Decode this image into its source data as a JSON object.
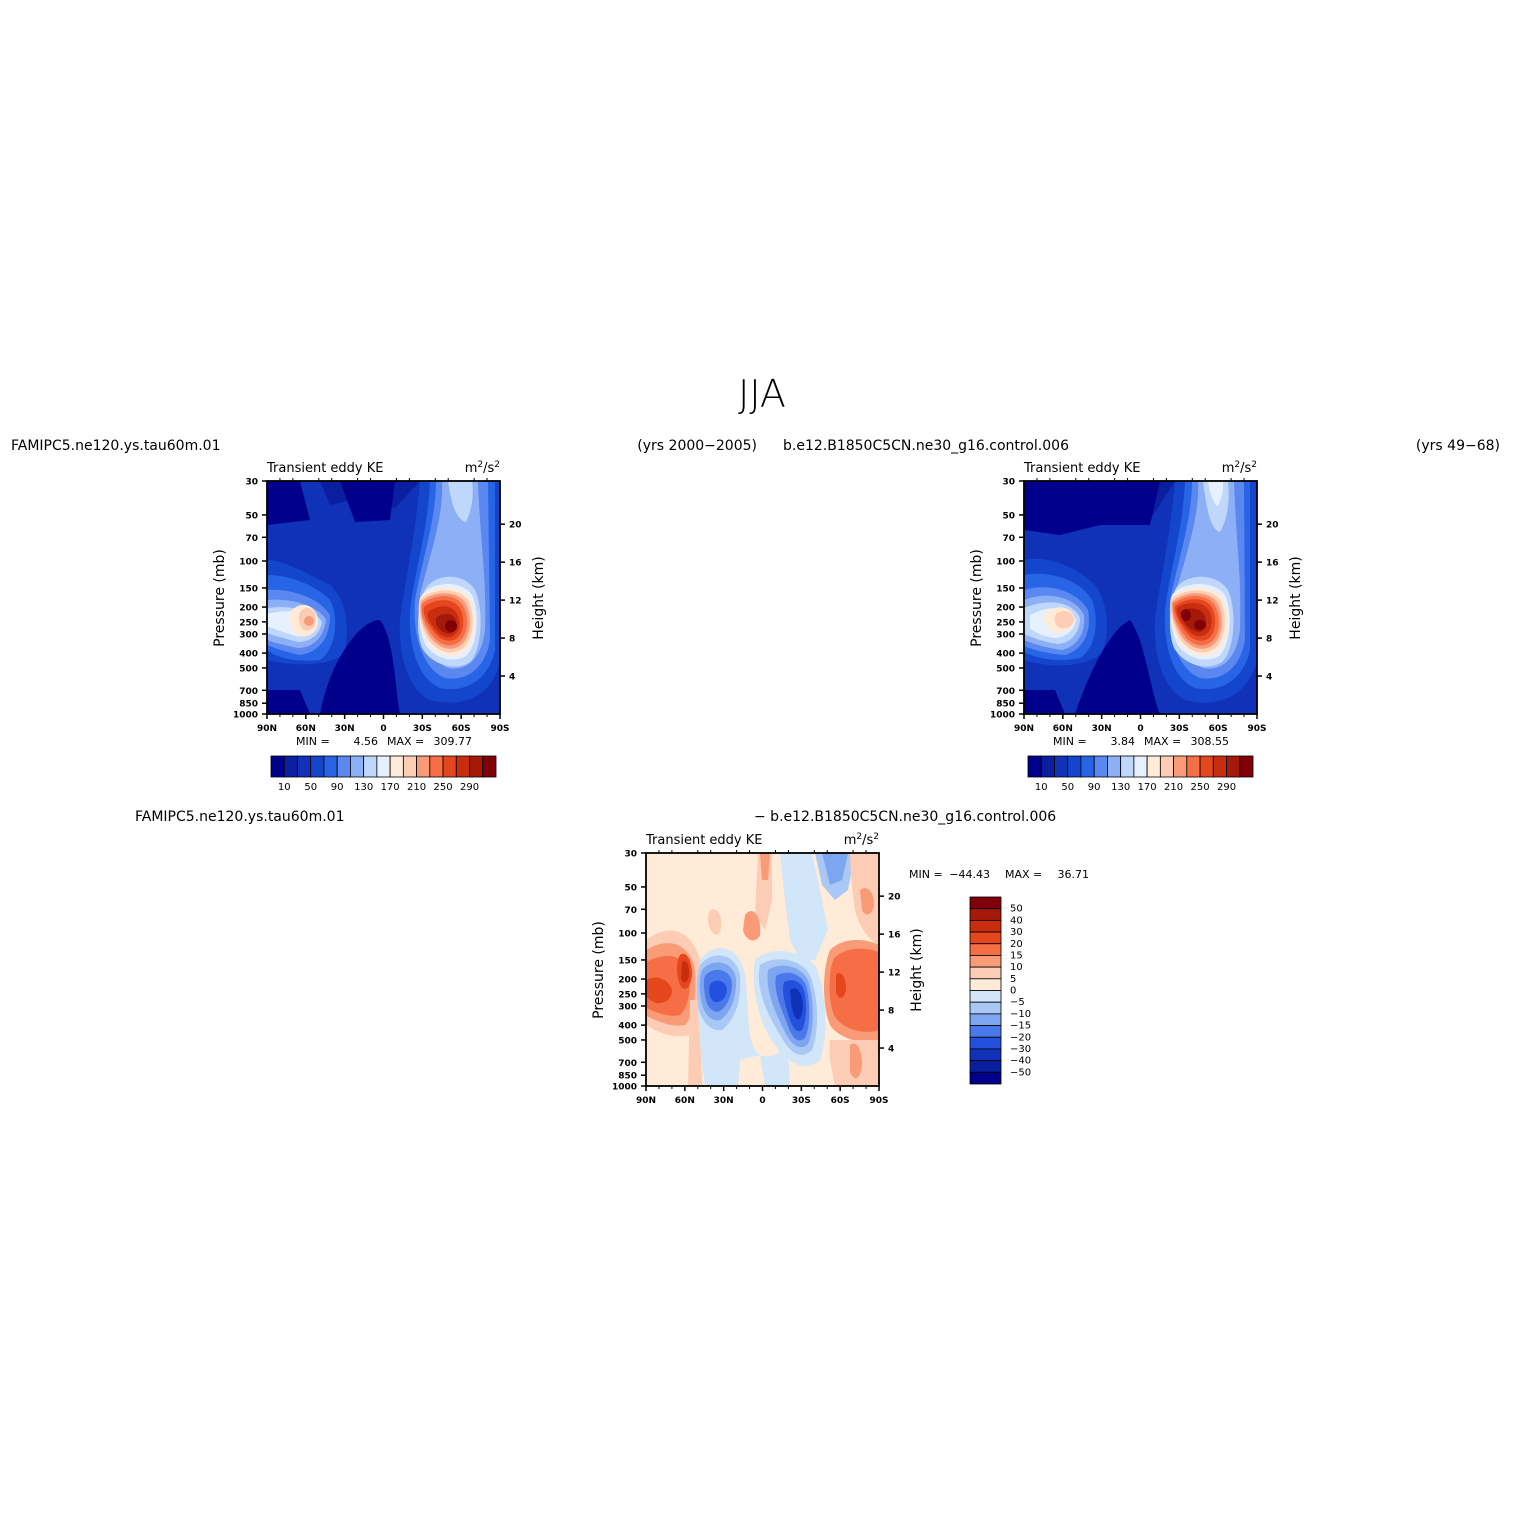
{
  "figure": {
    "title": "JJA",
    "difference_header": {
      "case_a": "FAMIPC5.ne120.ys.tau60m.01",
      "case_b": "− b.e12.B1850C5CN.ne30_g16.control.006"
    }
  },
  "chart_data": [
    {
      "id": "case-a",
      "type": "heatmap",
      "case_name": "FAMIPC5.ne120.ys.tau60m.01",
      "years": "(yrs 2000−2005)",
      "variable": "Transient eddy KE",
      "units_base": "m",
      "units_exp": "2",
      "units_tail": "/s",
      "units_exp2": "2",
      "ylabel": "Pressure (mb)",
      "ylabel_right": "Height (km)",
      "x_ticks": [
        "90N",
        "60N",
        "30N",
        "0",
        "30S",
        "60S",
        "90S"
      ],
      "y_ticks": [
        30,
        50,
        70,
        100,
        150,
        200,
        250,
        300,
        400,
        500,
        700,
        850,
        1000
      ],
      "height_ticks": [
        4,
        8,
        12,
        16,
        20
      ],
      "min_label": "MIN =",
      "min_value": "4.56",
      "max_label": "MAX =",
      "max_value": "309.77",
      "colorbar_ticks": [
        "10",
        "50",
        "90",
        "130",
        "170",
        "210",
        "250",
        "290"
      ],
      "colorbar_orientation": "horizontal"
    },
    {
      "id": "case-b",
      "type": "heatmap",
      "case_name": "b.e12.B1850C5CN.ne30_g16.control.006",
      "years": "(yrs 49−68)",
      "variable": "Transient eddy KE",
      "units_base": "m",
      "units_exp": "2",
      "units_tail": "/s",
      "units_exp2": "2",
      "ylabel": "Pressure (mb)",
      "ylabel_right": "Height (km)",
      "x_ticks": [
        "90N",
        "60N",
        "30N",
        "0",
        "30S",
        "60S",
        "90S"
      ],
      "y_ticks": [
        30,
        50,
        70,
        100,
        150,
        200,
        250,
        300,
        400,
        500,
        700,
        850,
        1000
      ],
      "height_ticks": [
        4,
        8,
        12,
        16,
        20
      ],
      "min_label": "MIN =",
      "min_value": "3.84",
      "max_label": "MAX =",
      "max_value": "308.55",
      "colorbar_ticks": [
        "10",
        "50",
        "90",
        "130",
        "170",
        "210",
        "250",
        "290"
      ],
      "colorbar_orientation": "horizontal"
    },
    {
      "id": "difference",
      "type": "heatmap",
      "variable": "Transient eddy KE",
      "units_base": "m",
      "units_exp": "2",
      "units_tail": "/s",
      "units_exp2": "2",
      "ylabel": "Pressure (mb)",
      "ylabel_right": "Height (km)",
      "x_ticks": [
        "90N",
        "60N",
        "30N",
        "0",
        "30S",
        "60S",
        "90S"
      ],
      "y_ticks": [
        30,
        50,
        70,
        100,
        150,
        200,
        250,
        300,
        400,
        500,
        700,
        850,
        1000
      ],
      "height_ticks": [
        4,
        8,
        12,
        16,
        20
      ],
      "min_label": "MIN =",
      "min_value": "−44.43",
      "max_label": "MAX =",
      "max_value": "36.71",
      "colorbar_ticks": [
        "50",
        "40",
        "30",
        "20",
        "15",
        "10",
        "5",
        "0",
        "−5",
        "−10",
        "−15",
        "−20",
        "−30",
        "−40",
        "−50"
      ],
      "colorbar_orientation": "vertical"
    }
  ],
  "colors": {
    "abs_scale": [
      "#00008c",
      "#0a1ea0",
      "#0f32b9",
      "#1446cd",
      "#2864e6",
      "#5a87f0",
      "#8caff5",
      "#bed7fa",
      "#e6f0ff",
      "#ffebd7",
      "#fccdb4",
      "#fa9b78",
      "#f56e46",
      "#e6461e",
      "#c82d0f",
      "#a5190a",
      "#80000a"
    ],
    "diff_scale": [
      "#80000a",
      "#a5190a",
      "#c82d0f",
      "#e6461e",
      "#f56e46",
      "#fa9b78",
      "#fccdb4",
      "#ffebd7",
      "#d2e6fa",
      "#aac8f5",
      "#7da5f0",
      "#4b78eb",
      "#2350dc",
      "#0f32b9",
      "#0a1ea0",
      "#00008c"
    ]
  }
}
